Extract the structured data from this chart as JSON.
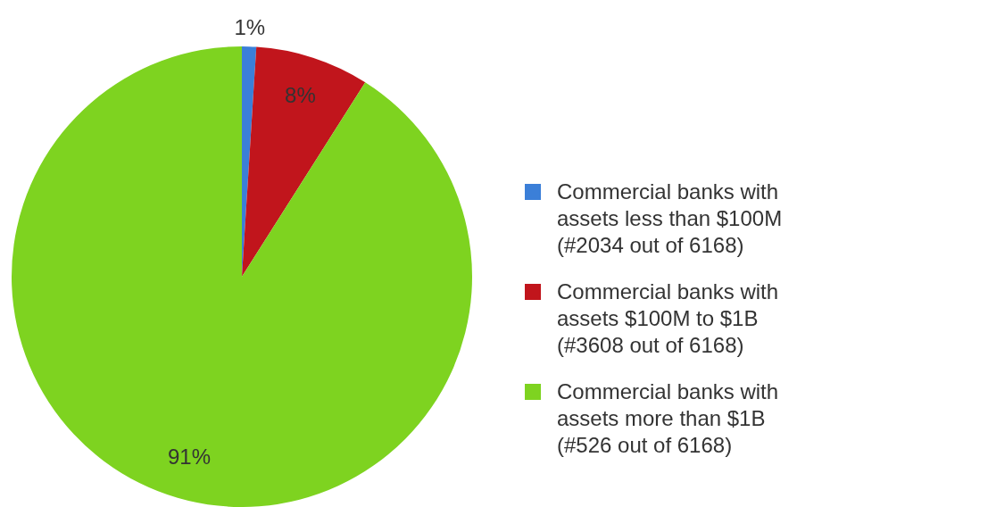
{
  "chart_data": {
    "type": "pie",
    "categories": [
      "Commercial banks with assets less than $100M (#2034 out of 6168)",
      "Commercial banks with assets $100M to $1B (#3608 out of 6168)",
      "Commercial banks with assets more than $1B (#526 out of 6168)"
    ],
    "values": [
      1,
      8,
      91
    ],
    "colors": [
      "#3b7fd8",
      "#c1151c",
      "#7ed320"
    ],
    "value_labels": [
      "1%",
      "8%",
      "91%"
    ],
    "legend": "right"
  }
}
